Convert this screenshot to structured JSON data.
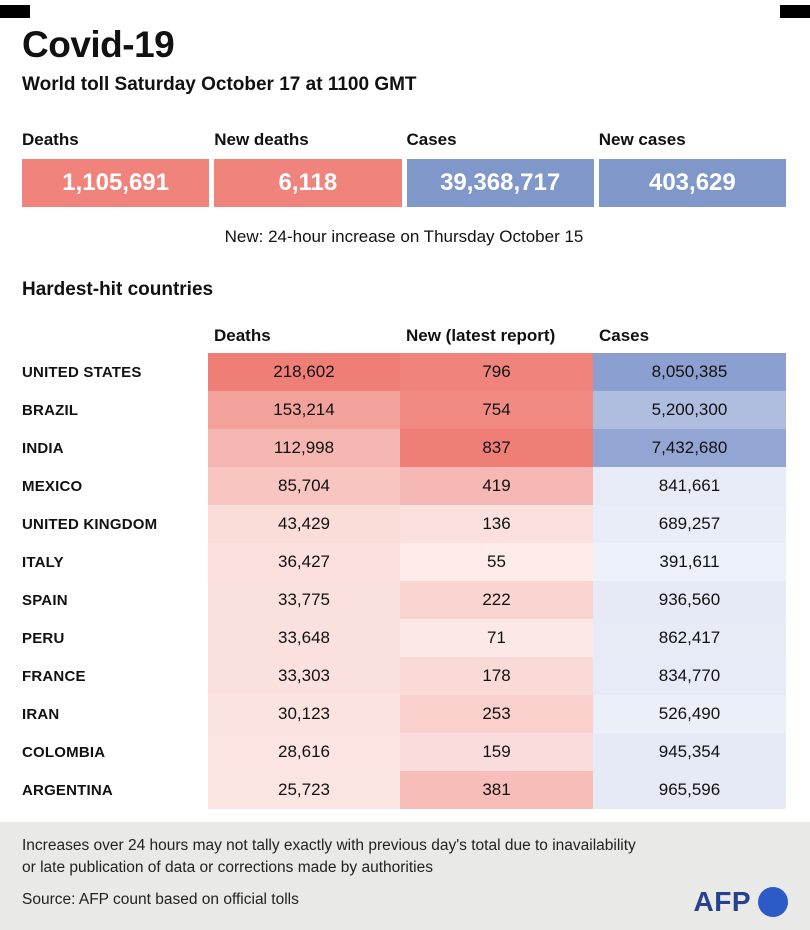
{
  "meta": {
    "title": "Covid-19",
    "subtitle": "World toll Saturday October 17 at 1100 GMT",
    "note": "New: 24-hour increase on Thursday October 15",
    "footnote_line1": "Increases over 24 hours may not tally exactly with previous day's total due to inavailability",
    "footnote_line2": "or late publication of data or corrections made by authorities",
    "source": "Source: AFP count based on official tolls",
    "logo_text": "AFP"
  },
  "summary": {
    "cells": [
      {
        "label": "Deaths",
        "value": "1,105,691",
        "color": "#f0837c"
      },
      {
        "label": "New deaths",
        "value": "6,118",
        "color": "#f0837c"
      },
      {
        "label": "Cases",
        "value": "39,368,717",
        "color": "#8097c9"
      },
      {
        "label": "New cases",
        "value": "403,629",
        "color": "#8097c9"
      }
    ]
  },
  "chart_data": {
    "type": "heatmap",
    "title": "Hardest-hit countries",
    "columns": [
      "Deaths",
      "New (latest report)",
      "Cases"
    ],
    "rows": [
      {
        "country": "UNITED STATES",
        "deaths": 218602,
        "new": 796,
        "cases": 8050385
      },
      {
        "country": "BRAZIL",
        "deaths": 153214,
        "new": 754,
        "cases": 5200300
      },
      {
        "country": "INDIA",
        "deaths": 112998,
        "new": 837,
        "cases": 7432680
      },
      {
        "country": "MEXICO",
        "deaths": 85704,
        "new": 419,
        "cases": 841661
      },
      {
        "country": "UNITED KINGDOM",
        "deaths": 43429,
        "new": 136,
        "cases": 689257
      },
      {
        "country": "ITALY",
        "deaths": 36427,
        "new": 55,
        "cases": 391611
      },
      {
        "country": "SPAIN",
        "deaths": 33775,
        "new": 222,
        "cases": 936560
      },
      {
        "country": "PERU",
        "deaths": 33648,
        "new": 71,
        "cases": 862417
      },
      {
        "country": "FRANCE",
        "deaths": 33303,
        "new": 178,
        "cases": 834770
      },
      {
        "country": "IRAN",
        "deaths": 30123,
        "new": 253,
        "cases": 526490
      },
      {
        "country": "COLOMBIA",
        "deaths": 28616,
        "new": 159,
        "cases": 945354
      },
      {
        "country": "ARGENTINA",
        "deaths": 25723,
        "new": 381,
        "cases": 965596
      }
    ],
    "scales": {
      "red_light": "#fdf3f1",
      "red_dark": "#ef7e77",
      "blue_light": "#f1f4fb",
      "blue_dark": "#8ba0d0"
    }
  }
}
